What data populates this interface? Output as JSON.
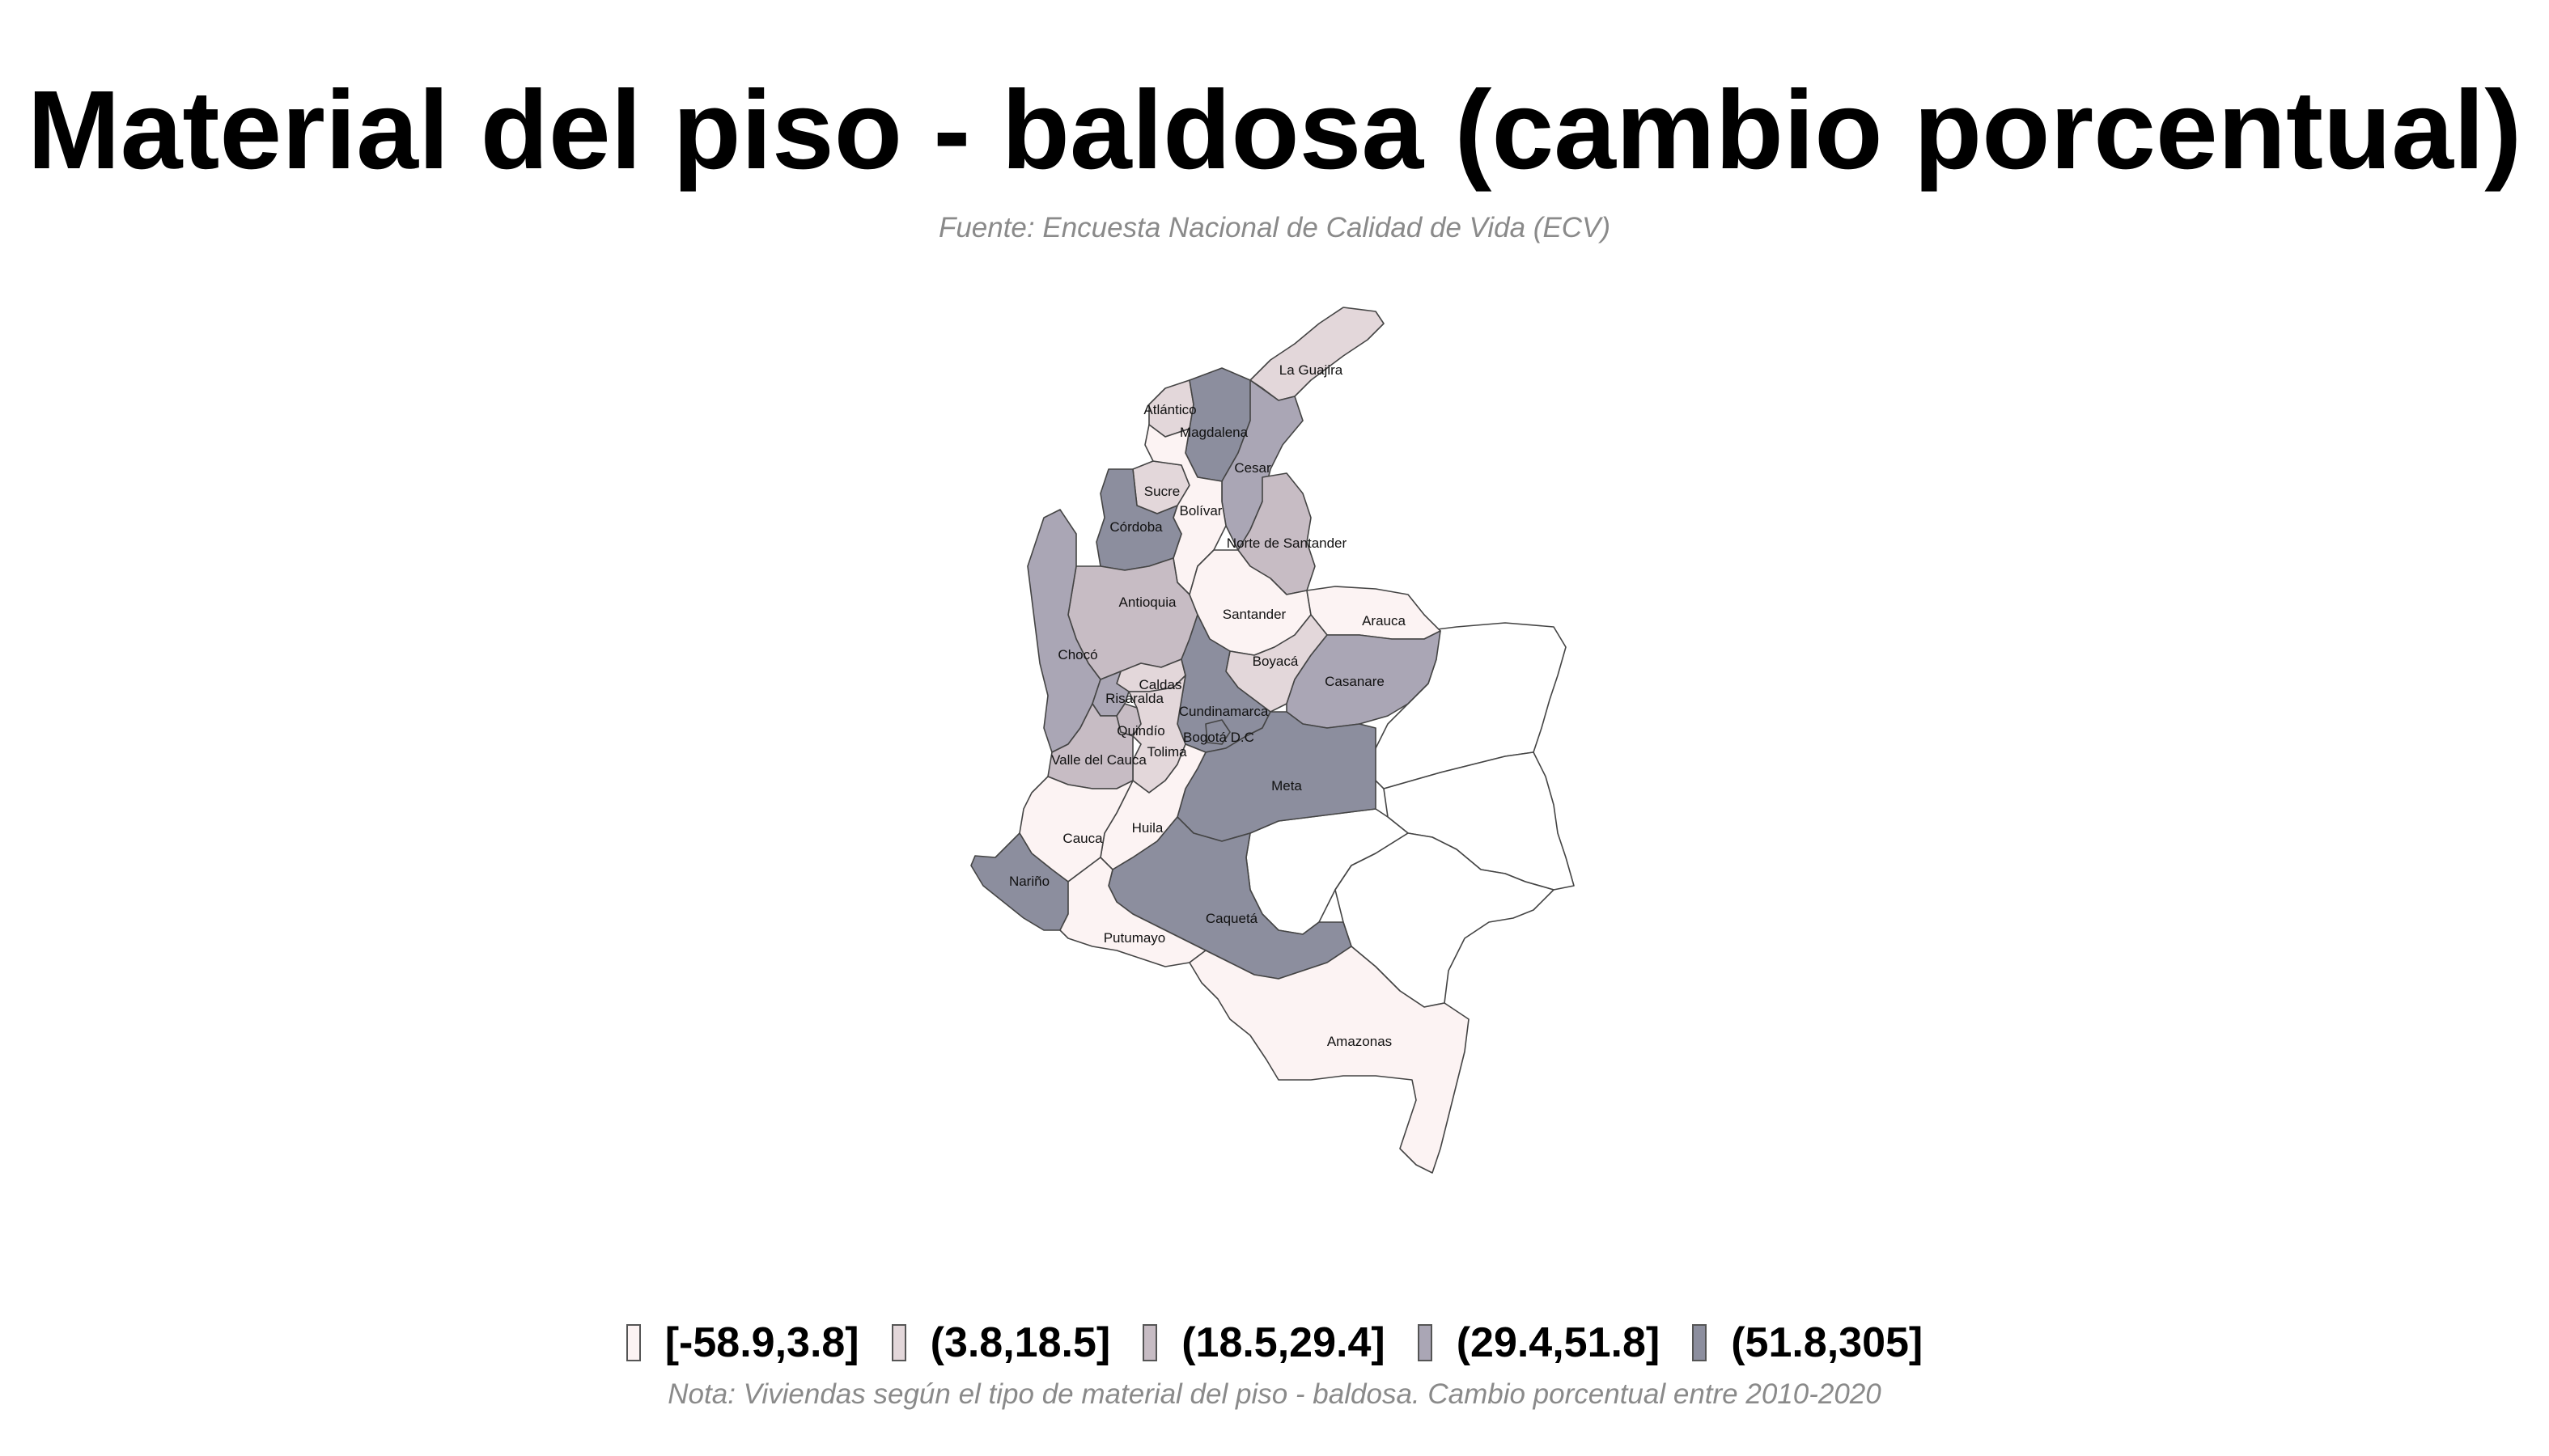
{
  "title": "Material del piso - baldosa (cambio porcentual)",
  "subtitle": "Fuente: Encuesta Nacional de Calidad de Vida (ECV)",
  "note": "Nota: Viviendas según el tipo de material del piso - baldosa. Cambio porcentual entre 2010-2020",
  "legend": [
    {
      "label": "[-58.9,3.8]",
      "color": "#fcf3f3"
    },
    {
      "label": "(3.8,18.5]",
      "color": "#e3d7da"
    },
    {
      "label": "(18.5,29.4]",
      "color": "#c7bcc4"
    },
    {
      "label": "(29.4,51.8]",
      "color": "#aaa6b5"
    },
    {
      "label": "(51.8,305]",
      "color": "#8c8e9e"
    }
  ],
  "departments": [
    {
      "name": "La Guajira",
      "class": 1
    },
    {
      "name": "Atlántico",
      "class": 1
    },
    {
      "name": "Magdalena",
      "class": 4
    },
    {
      "name": "Cesar",
      "class": 3
    },
    {
      "name": "Sucre",
      "class": 2
    },
    {
      "name": "Bolívar",
      "class": 0
    },
    {
      "name": "Córdoba",
      "class": 4
    },
    {
      "name": "Norte de Santander",
      "class": 2
    },
    {
      "name": "Antioquia",
      "class": 2
    },
    {
      "name": "Santander",
      "class": 0
    },
    {
      "name": "Arauca",
      "class": 0
    },
    {
      "name": "Chocó",
      "class": 3
    },
    {
      "name": "Boyacá",
      "class": 1
    },
    {
      "name": "Casanare",
      "class": 3
    },
    {
      "name": "Caldas",
      "class": 1
    },
    {
      "name": "Risaralda",
      "class": 3
    },
    {
      "name": "Cundinamarca",
      "class": 4
    },
    {
      "name": "Quindío",
      "class": 2
    },
    {
      "name": "Bogotá D.C",
      "class": 4
    },
    {
      "name": "Tolima",
      "class": 1
    },
    {
      "name": "Valle del Cauca",
      "class": 2
    },
    {
      "name": "Meta",
      "class": 4
    },
    {
      "name": "Huila",
      "class": 0
    },
    {
      "name": "Cauca",
      "class": 0
    },
    {
      "name": "Nariño",
      "class": 4
    },
    {
      "name": "Caquetá",
      "class": 4
    },
    {
      "name": "Putumayo",
      "class": 0
    },
    {
      "name": "Amazonas",
      "class": 0
    }
  ]
}
